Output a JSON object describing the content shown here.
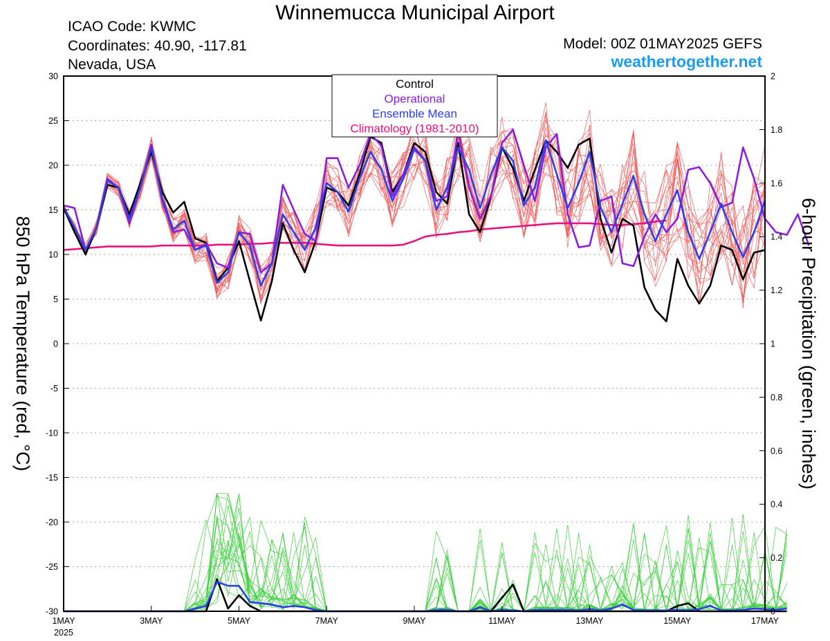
{
  "header": {
    "title": "Winnemucca Municipal Airport",
    "icao": "ICAO Code: KWMC",
    "coords": "Coordinates: 40.90, -117.81",
    "location": "Nevada, USA",
    "model": "Model: 00Z 01MAY2025 GEFS",
    "site": "weathertogether.net"
  },
  "chart_data": {
    "type": "line",
    "left_axis": {
      "label": "850 hPa Temperature (red, °C)",
      "range": [
        -30,
        30
      ],
      "ticks": [
        -30,
        -25,
        -20,
        -15,
        -10,
        -5,
        0,
        5,
        10,
        15,
        20,
        25,
        30
      ]
    },
    "right_axis": {
      "label": "6-hour Precipitation (green, inches)",
      "range": [
        0,
        2
      ],
      "ticks": [
        "0",
        "0.2",
        "0.4",
        "0.6",
        "0.8",
        "1",
        "1.2",
        "1.4",
        "1.6",
        "1.8",
        "2"
      ]
    },
    "x_axis": {
      "range_days": [
        0,
        16
      ],
      "step_hours": 6,
      "ticks": [
        {
          "day": 0,
          "label": "1MAY",
          "sub": "2025"
        },
        {
          "day": 2,
          "label": "3MAY"
        },
        {
          "day": 4,
          "label": "5MAY"
        },
        {
          "day": 6,
          "label": "7MAY"
        },
        {
          "day": 8,
          "label": "9MAY"
        },
        {
          "day": 10,
          "label": "11MAY"
        },
        {
          "day": 12,
          "label": "13MAY"
        },
        {
          "day": 14,
          "label": "15MAY"
        },
        {
          "day": 16,
          "label": "17MAY"
        }
      ]
    },
    "grid": "horizontal dotted",
    "legend": {
      "placement": "top-center",
      "items": [
        {
          "label": "Control",
          "color": "#000000"
        },
        {
          "label": "Operational",
          "color": "#8a1ee0"
        },
        {
          "label": "Ensemble Mean",
          "color": "#2b3ff0"
        },
        {
          "label": "Climatology (1981-2010)",
          "color": "#e8127c"
        }
      ]
    },
    "colors": {
      "members_temp": "#f06060",
      "members_precip": "#3cd03c",
      "control": "#000000",
      "operational": "#8a1ee0",
      "mean": "#2b3ff0",
      "climatology": "#e8127c"
    },
    "series": {
      "control_temp": [
        15.2,
        12.5,
        10,
        13,
        17.8,
        17.5,
        14.5,
        18,
        21.5,
        17,
        14.7,
        15.9,
        11.8,
        11.3,
        7,
        8.5,
        11.5,
        7,
        2.6,
        7,
        13.5,
        10.5,
        8,
        11.5,
        17.5,
        17,
        15.5,
        19,
        23.2,
        22.5,
        17,
        19,
        22.5,
        21.5,
        17,
        15.7,
        22.5,
        14.5,
        12.5,
        16.5,
        22,
        19.7,
        16,
        19.5,
        22.8,
        21.5,
        19.7,
        22.3,
        23,
        14,
        10.2,
        14,
        13.2,
        6.3,
        3.8,
        2.5,
        9.5,
        6.5,
        4.5,
        6.5,
        11,
        10.5,
        7.2,
        10.2,
        10.5
      ],
      "operational_temp": [
        15.5,
        15.2,
        10.5,
        13,
        18.5,
        17.5,
        13.5,
        17.5,
        22.3,
        16,
        12.5,
        12.8,
        10.5,
        11.2,
        9,
        8.5,
        12.5,
        12.3,
        8,
        9,
        17.8,
        15,
        12.3,
        11.5,
        20.8,
        20.8,
        17.5,
        20,
        23.5,
        22.2,
        16.5,
        19,
        22,
        20.5,
        16,
        16.5,
        23.8,
        17.5,
        14,
        16.5,
        22.5,
        24,
        20,
        16,
        22,
        23.5,
        14.5,
        10.8,
        11,
        16,
        16.5,
        9,
        8.7,
        12,
        14.5,
        12.5,
        14,
        19.5,
        19.8,
        18,
        15.3,
        15.8,
        22,
        18.5,
        14,
        12.5,
        12.2,
        14.5,
        11
      ],
      "mean_temp": [
        15.3,
        13,
        10.5,
        13,
        18.3,
        17.5,
        14,
        17.5,
        22,
        16.3,
        12.8,
        13.8,
        10.5,
        11,
        6.8,
        8,
        12.5,
        11,
        6.5,
        9,
        14.5,
        12.5,
        10.5,
        13,
        18,
        17,
        14.8,
        18.5,
        21.5,
        19.5,
        16,
        18.5,
        21.8,
        20.5,
        15,
        17.5,
        22,
        19.5,
        15.2,
        19,
        22,
        20.5,
        15.5,
        17.5,
        22.8,
        19,
        15.2,
        18,
        21.5,
        15.3,
        12.5,
        15.7,
        18.8,
        14.5,
        11.5,
        14.5,
        17.2,
        12.5,
        9.5,
        12.5,
        15.7,
        12.5,
        9.7,
        12.5,
        16
      ],
      "climatology_temp": [
        10.5,
        10.6,
        10.7,
        10.8,
        10.9,
        10.9,
        10.9,
        10.9,
        10.9,
        11,
        11,
        11,
        11,
        11,
        11.1,
        11.1,
        11.1,
        11.2,
        11.2,
        11.3,
        11.3,
        11.3,
        11.3,
        11.2,
        11.1,
        11,
        11,
        11,
        11,
        11,
        11,
        11.1,
        11.5,
        12,
        12.2,
        12.3,
        12.5,
        12.6,
        12.8,
        12.9,
        13,
        13.1,
        13.2,
        13.3,
        13.4,
        13.5,
        13.5,
        13.5,
        13.5,
        13.4,
        13.3,
        13.3,
        13.4,
        13.5,
        13.7,
        13.8
      ],
      "control_precip": [
        0,
        0,
        0,
        0,
        0,
        0,
        0,
        0,
        0,
        0,
        0,
        0,
        0,
        0,
        0.12,
        0.01,
        0.06,
        0.02,
        0,
        0,
        0,
        0,
        0,
        0,
        0,
        0,
        0,
        0,
        0,
        0,
        0,
        0,
        0,
        0,
        0,
        0,
        0,
        0,
        0,
        0,
        0.05,
        0.1,
        0,
        0,
        0,
        0,
        0,
        0,
        0,
        0,
        0,
        0,
        0,
        0,
        0,
        0,
        0.02,
        0.03,
        0,
        0,
        0,
        0,
        0,
        0,
        0,
        0,
        0
      ],
      "mean_precip": [
        0,
        0,
        0,
        0,
        0,
        0,
        0,
        0,
        0,
        0,
        0,
        0,
        0.01,
        0.02,
        0.11,
        0.095,
        0.095,
        0.035,
        0.03,
        0.025,
        0.015,
        0.02,
        0.015,
        0.005,
        0,
        0,
        0,
        0,
        0,
        0,
        0,
        0,
        0,
        0,
        0.005,
        0.005,
        0,
        0,
        0.015,
        0,
        0.005,
        0.003,
        0,
        0.005,
        0.005,
        0.005,
        0.005,
        0.003,
        0.008,
        0.003,
        0.01,
        0.025,
        0.005,
        0.003,
        0.003,
        0.003,
        0.005,
        0.003,
        0.008,
        0.02,
        0.003,
        0.003,
        0.005,
        0.01,
        0.008,
        0.005,
        0.01
      ]
    }
  }
}
